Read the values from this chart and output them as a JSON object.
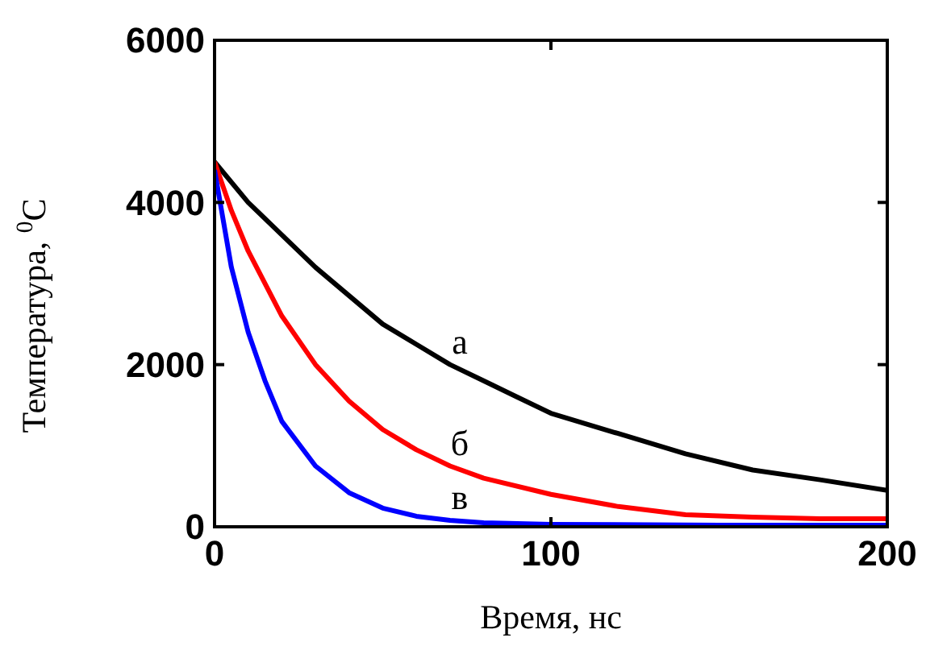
{
  "chart_data": {
    "type": "line",
    "xlabel": "Время, нс",
    "ylabel": "Температура, $^{0}$C",
    "xlim": [
      0,
      200
    ],
    "ylim": [
      0,
      6000
    ],
    "xticks": [
      0,
      100,
      200
    ],
    "yticks": [
      0,
      2000,
      4000,
      6000
    ],
    "grid": false,
    "marker": "none",
    "line_style": "solid",
    "series": [
      {
        "name": "а",
        "color": "#000000",
        "x": [
          0,
          10,
          20,
          30,
          40,
          50,
          60,
          70,
          80,
          90,
          100,
          120,
          140,
          160,
          180,
          200
        ],
        "values": [
          4500,
          4000,
          3600,
          3200,
          2850,
          2500,
          2250,
          2000,
          1800,
          1600,
          1400,
          1150,
          900,
          700,
          580,
          450
        ]
      },
      {
        "name": "б",
        "color": "#ff0000",
        "x": [
          0,
          5,
          10,
          20,
          30,
          40,
          50,
          60,
          70,
          80,
          100,
          120,
          140,
          160,
          180,
          200
        ],
        "values": [
          4500,
          3900,
          3400,
          2600,
          2000,
          1550,
          1200,
          950,
          750,
          600,
          400,
          250,
          150,
          120,
          100,
          100
        ]
      },
      {
        "name": "в",
        "color": "#0000ff",
        "x": [
          0,
          5,
          10,
          15,
          20,
          30,
          40,
          50,
          60,
          70,
          80,
          100,
          150,
          200
        ],
        "values": [
          4400,
          3200,
          2400,
          1800,
          1300,
          750,
          420,
          230,
          130,
          80,
          50,
          30,
          20,
          20
        ]
      }
    ]
  }
}
